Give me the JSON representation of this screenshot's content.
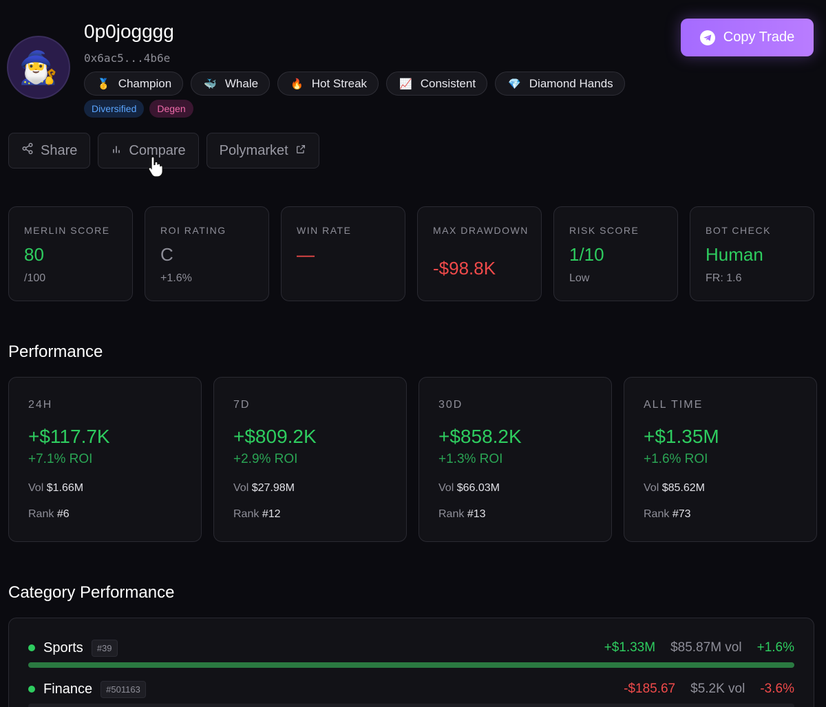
{
  "profile": {
    "avatar_emoji": "🧙‍♂️",
    "username": "0p0jogggg",
    "address": "0x6ac5...4b6e",
    "badges": [
      {
        "icon": "🥇",
        "label": "Champion"
      },
      {
        "icon": "🐳",
        "label": "Whale"
      },
      {
        "icon": "🔥",
        "label": "Hot Streak"
      },
      {
        "icon": "📈",
        "label": "Consistent"
      },
      {
        "icon": "💎",
        "label": "Diamond Hands"
      }
    ],
    "tags": [
      "Diversified",
      "Degen"
    ]
  },
  "copy_trade": {
    "label": "Copy Trade"
  },
  "actions": {
    "share": "Share",
    "compare": "Compare",
    "polymarket": "Polymarket"
  },
  "stats": [
    {
      "label": "MERLIN SCORE",
      "value": "80",
      "sub": "/100",
      "color": "#2ecc5f"
    },
    {
      "label": "ROI RATING",
      "value": "C",
      "sub": "+1.6%",
      "color": "#8e8e98"
    },
    {
      "label": "WIN RATE",
      "value": "—",
      "sub": "",
      "color": "#ef4a4a"
    },
    {
      "label": "MAX DRAWDOWN",
      "value": "-$98.8K",
      "sub": "",
      "color": "#ef4a4a"
    },
    {
      "label": "RISK SCORE",
      "value": "1/10",
      "sub": "Low",
      "color": "#2ecc5f"
    },
    {
      "label": "BOT CHECK",
      "value": "Human",
      "sub": "FR: 1.6",
      "color": "#2ecc5f"
    }
  ],
  "performance": {
    "title": "Performance",
    "periods": [
      {
        "period": "24H",
        "pnl": "+$117.7K",
        "roi": "+7.1% ROI",
        "vol_label": "Vol",
        "vol": "$1.66M",
        "rank_label": "Rank",
        "rank": "#6"
      },
      {
        "period": "7D",
        "pnl": "+$809.2K",
        "roi": "+2.9% ROI",
        "vol_label": "Vol",
        "vol": "$27.98M",
        "rank_label": "Rank",
        "rank": "#12"
      },
      {
        "period": "30D",
        "pnl": "+$858.2K",
        "roi": "+1.3% ROI",
        "vol_label": "Vol",
        "vol": "$66.03M",
        "rank_label": "Rank",
        "rank": "#13"
      },
      {
        "period": "ALL TIME",
        "pnl": "+$1.35M",
        "roi": "+1.6% ROI",
        "vol_label": "Vol",
        "vol": "$85.62M",
        "rank_label": "Rank",
        "rank": "#73"
      }
    ]
  },
  "categories": {
    "title": "Category Performance",
    "items": [
      {
        "name": "Sports",
        "rank": "#39",
        "pnl": "+$1.33M",
        "vol": "$85.87M vol",
        "roi": "+1.6%",
        "bar_fill": 1.0,
        "positive": true
      },
      {
        "name": "Finance",
        "rank": "#501163",
        "pnl": "-$185.67",
        "vol": "$5.2K vol",
        "roi": "-3.6%",
        "bar_fill": 0.0,
        "positive": false
      }
    ]
  }
}
